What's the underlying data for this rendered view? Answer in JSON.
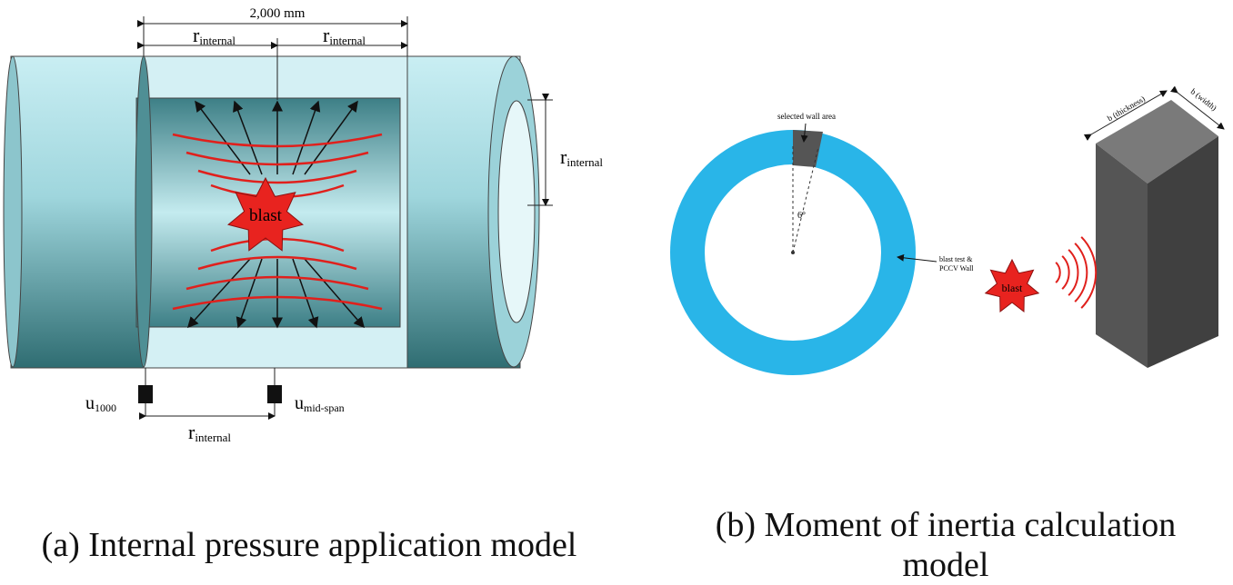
{
  "panel_a": {
    "dimension_total": "2,000 mm",
    "radius_symbol": "r",
    "radius_subscript": "internal",
    "blast_label": "blast",
    "gauge_left": {
      "symbol": "u",
      "subscript": "1000"
    },
    "gauge_right": {
      "symbol": "u",
      "subscript": "mid-span"
    },
    "caption": "(a) Internal pressure application model"
  },
  "panel_b": {
    "selected_label": "selected wall area",
    "angle_label": "6°",
    "wall_label_line1": "blast test &",
    "wall_label_line2": "PCCV Wall",
    "blast_label": "blast",
    "thickness_label": "b (thickness)",
    "width_label": "b (width)",
    "caption": "(b) Moment of inertia calculation model"
  }
}
